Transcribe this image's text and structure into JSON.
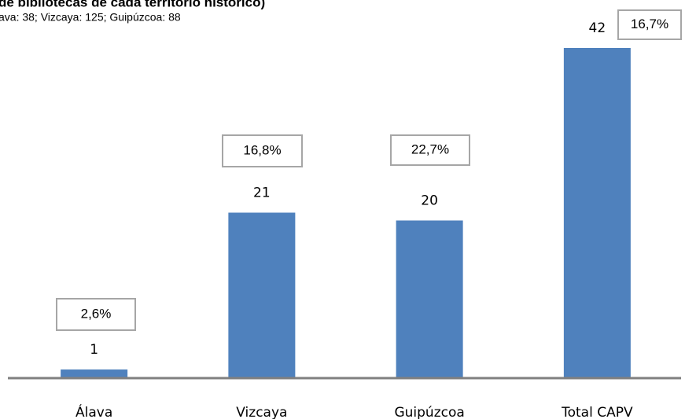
{
  "chart_data": {
    "type": "bar",
    "title": "de bibliotecas de cada territorio histórico)",
    "subtitle": "ava: 38; Vizcaya: 125; Guipúzcoa: 88",
    "categories": [
      "Álava",
      "Vizcaya",
      "Guipúzcoa",
      "Total CAPV"
    ],
    "values": [
      1,
      21,
      20,
      42
    ],
    "annotations": [
      "2,6%",
      "16,8%",
      "22,7%",
      "16,7%"
    ],
    "color": "#4f81bd",
    "ylim": [
      0,
      42
    ]
  }
}
